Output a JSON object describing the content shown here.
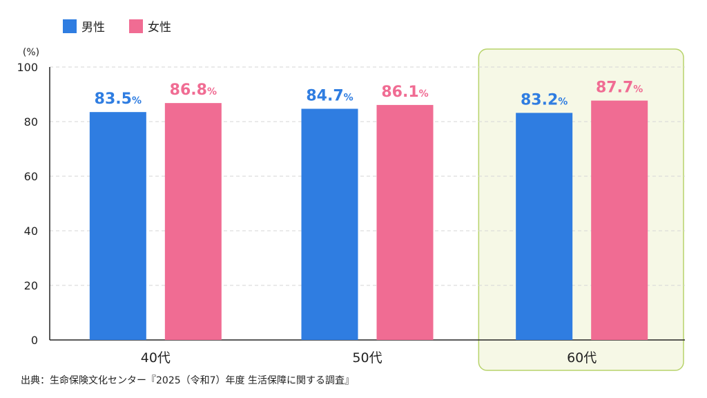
{
  "chart_data": {
    "type": "bar",
    "categories": [
      "40代",
      "50代",
      "60代"
    ],
    "series": [
      {
        "name": "男性",
        "color": "#2f7de1",
        "values": [
          83.5,
          84.7,
          83.2
        ]
      },
      {
        "name": "女性",
        "color": "#f06c93",
        "values": [
          86.8,
          86.1,
          87.7
        ]
      }
    ],
    "value_suffix": "%",
    "ylabel": "(%)",
    "ylim": [
      0,
      100
    ],
    "yticks": [
      0,
      20,
      40,
      60,
      80,
      100
    ],
    "grid": true,
    "legend_position": "top-left",
    "highlighted_category": "60代",
    "highlight_color": "#f6f8e6",
    "highlight_border": "#b7d36a"
  },
  "source_note": "出典：生命保険文化センター『2025（令和7）年度 生活保障に関する調査』"
}
